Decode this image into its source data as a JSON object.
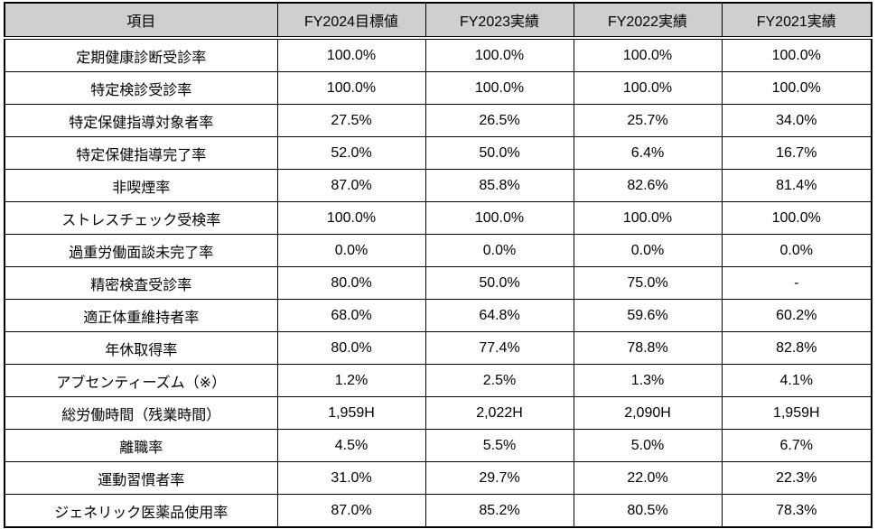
{
  "colors": {
    "header_bg": "#d0cece",
    "border": "#000000",
    "text": "#000000",
    "page_bg": "#ffffff"
  },
  "table": {
    "columns": [
      "項目",
      "FY2024目標値",
      "FY2023実績",
      "FY2022実績",
      "FY2021実績"
    ],
    "rows": [
      {
        "item": "定期健康診断受診率",
        "values": [
          "100.0%",
          "100.0%",
          "100.0%",
          "100.0%"
        ]
      },
      {
        "item": "特定検診受診率",
        "values": [
          "100.0%",
          "100.0%",
          "100.0%",
          "100.0%"
        ]
      },
      {
        "item": "特定保健指導対象者率",
        "values": [
          "27.5%",
          "26.5%",
          "25.7%",
          "34.0%"
        ]
      },
      {
        "item": "特定保健指導完了率",
        "values": [
          "52.0%",
          "50.0%",
          "6.4%",
          "16.7%"
        ]
      },
      {
        "item": "非喫煙率",
        "values": [
          "87.0%",
          "85.8%",
          "82.6%",
          "81.4%"
        ]
      },
      {
        "item": "ストレスチェック受検率",
        "values": [
          "100.0%",
          "100.0%",
          "100.0%",
          "100.0%"
        ]
      },
      {
        "item": "過重労働面談未完了率",
        "values": [
          "0.0%",
          "0.0%",
          "0.0%",
          "0.0%"
        ]
      },
      {
        "item": "精密検査受診率",
        "values": [
          "80.0%",
          "50.0%",
          "75.0%",
          "-"
        ]
      },
      {
        "item": "適正体重維持者率",
        "values": [
          "68.0%",
          "64.8%",
          "59.6%",
          "60.2%"
        ]
      },
      {
        "item": "年休取得率",
        "values": [
          "80.0%",
          "77.4%",
          "78.8%",
          "82.8%"
        ]
      },
      {
        "item": "アブセンティーズム（※）",
        "values": [
          "1.2%",
          "2.5%",
          "1.3%",
          "4.1%"
        ]
      },
      {
        "item": "総労働時間（残業時間）",
        "values": [
          "1,959H",
          "2,022H",
          "2,090H",
          "1,959H"
        ]
      },
      {
        "item": "離職率",
        "values": [
          "4.5%",
          "5.5%",
          "5.0%",
          "6.7%"
        ]
      },
      {
        "item": "運動習慣者率",
        "values": [
          "31.0%",
          "29.7%",
          "22.0%",
          "22.3%"
        ]
      },
      {
        "item": "ジェネリック医薬品使用率",
        "values": [
          "87.0%",
          "85.2%",
          "80.5%",
          "78.3%"
        ]
      }
    ]
  }
}
